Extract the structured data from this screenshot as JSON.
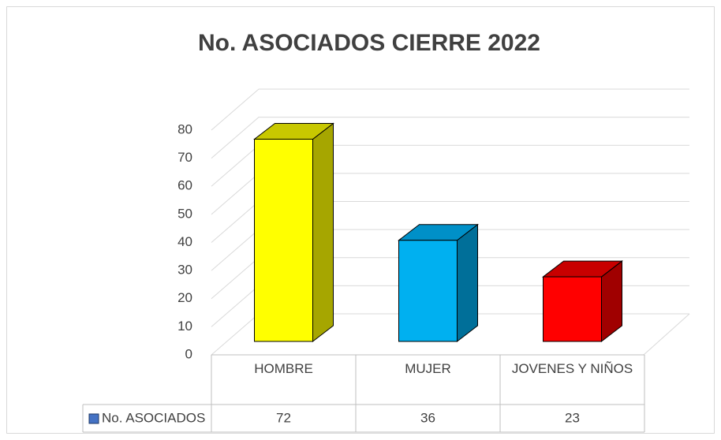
{
  "chart_data": {
    "type": "bar3d",
    "title": "No. ASOCIADOS CIERRE 2022",
    "categories": [
      "HOMBRE",
      "MUJER",
      "JOVENES Y NIÑOS"
    ],
    "series": [
      {
        "name": "No. ASOCIADOS",
        "color": "#4472c4",
        "values": [
          72,
          36,
          23
        ],
        "colors": [
          "#ffff00",
          "#00b0f0",
          "#ff0000"
        ],
        "side_colors": [
          "#a6a600",
          "#006f99",
          "#a00000"
        ],
        "top_colors": [
          "#c8c800",
          "#0090c8",
          "#c80000"
        ]
      }
    ],
    "ylim": [
      0,
      80
    ],
    "yticks": [
      0,
      10,
      20,
      30,
      40,
      50,
      60,
      70,
      80
    ],
    "grid": true,
    "data_table": true
  }
}
